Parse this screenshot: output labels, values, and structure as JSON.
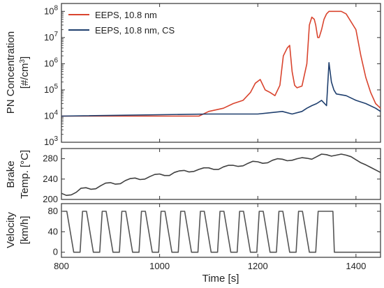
{
  "colors": {
    "eeps": "#d9442e",
    "eeps_cs": "#1f3f6e",
    "brake": "#404040",
    "velocity": "#555555",
    "axis": "#333333"
  },
  "xaxis": {
    "label": "Time [s]",
    "range": [
      800,
      1450
    ],
    "ticks": [
      800,
      1000,
      1200,
      1400
    ]
  },
  "chart_data": [
    {
      "type": "line",
      "ylabel": "PN Concentration [#/cm3]",
      "yscale": "log",
      "ylim": [
        1000,
        200000000
      ],
      "yticks": [
        {
          "value": 1000,
          "base": "10",
          "exp": "3"
        },
        {
          "value": 10000,
          "base": "10",
          "exp": "4"
        },
        {
          "value": 100000,
          "base": "10",
          "exp": "5"
        },
        {
          "value": 1000000,
          "base": "10",
          "exp": "6"
        },
        {
          "value": 10000000,
          "base": "10",
          "exp": "7"
        },
        {
          "value": 100000000,
          "base": "10",
          "exp": "8"
        }
      ],
      "legend": "top-left",
      "series": [
        {
          "name": "EEPS, 10.8 nm",
          "color": "#d9442e",
          "x": [
            800,
            1080,
            1100,
            1130,
            1150,
            1170,
            1185,
            1195,
            1205,
            1215,
            1225,
            1235,
            1245,
            1252,
            1260,
            1265,
            1270,
            1275,
            1280,
            1290,
            1300,
            1305,
            1310,
            1315,
            1318,
            1322,
            1325,
            1330,
            1335,
            1340,
            1345,
            1350,
            1355,
            1360,
            1370,
            1380,
            1400,
            1410,
            1420,
            1430,
            1440,
            1450
          ],
          "y": [
            10000,
            10000,
            15000,
            20000,
            30000,
            40000,
            80000,
            180000,
            250000,
            100000,
            80000,
            60000,
            150000,
            2000000,
            4000000,
            5000000,
            500000,
            150000,
            120000,
            140000,
            1000000,
            30000000,
            60000000,
            50000000,
            30000000,
            10000000,
            10000000,
            20000000,
            50000000,
            80000000,
            100000000,
            100000000,
            100000000,
            100000000,
            100000000,
            80000000,
            20000000,
            2000000,
            300000,
            80000,
            30000,
            20000
          ]
        },
        {
          "name": "EEPS, 10.8 nm, CS",
          "color": "#1f3f6e",
          "x": [
            800,
            1100,
            1200,
            1250,
            1270,
            1290,
            1300,
            1310,
            1320,
            1330,
            1340,
            1345,
            1350,
            1355,
            1360,
            1380,
            1400,
            1420,
            1440,
            1450
          ],
          "y": [
            10000,
            12000,
            12000,
            15000,
            12000,
            15000,
            20000,
            25000,
            30000,
            40000,
            25000,
            1100000,
            200000,
            100000,
            70000,
            60000,
            40000,
            30000,
            20000,
            15000
          ]
        }
      ]
    },
    {
      "type": "line",
      "ylabel": "Brake Temp. [°C]",
      "ylim": [
        200,
        300
      ],
      "yticks": [
        200,
        240,
        280
      ],
      "series": [
        {
          "name": "",
          "color": "#404040",
          "x": [
            800,
            810,
            820,
            830,
            840,
            850,
            860,
            870,
            880,
            890,
            900,
            910,
            920,
            930,
            940,
            950,
            960,
            970,
            980,
            990,
            1000,
            1010,
            1020,
            1030,
            1040,
            1050,
            1060,
            1070,
            1080,
            1090,
            1100,
            1110,
            1120,
            1130,
            1140,
            1150,
            1160,
            1170,
            1180,
            1190,
            1200,
            1210,
            1220,
            1230,
            1240,
            1250,
            1260,
            1270,
            1280,
            1290,
            1300,
            1310,
            1320,
            1330,
            1340,
            1350,
            1360,
            1370,
            1380,
            1390,
            1400,
            1410,
            1420,
            1430,
            1440,
            1450
          ],
          "y": [
            212,
            208,
            209,
            214,
            222,
            223,
            220,
            221,
            227,
            232,
            233,
            230,
            231,
            237,
            241,
            242,
            239,
            240,
            245,
            249,
            250,
            247,
            247,
            253,
            256,
            257,
            254,
            255,
            259,
            262,
            262,
            259,
            259,
            264,
            267,
            267,
            265,
            266,
            271,
            275,
            274,
            271,
            272,
            277,
            280,
            279,
            276,
            277,
            280,
            282,
            281,
            279,
            284,
            289,
            288,
            285,
            287,
            289,
            287,
            284,
            278,
            272,
            268,
            263,
            258,
            253
          ]
        }
      ]
    },
    {
      "type": "line",
      "ylabel": "Velocity [km/h]",
      "ylim": [
        -10,
        95
      ],
      "yticks": [
        0,
        40,
        80
      ],
      "series": [
        {
          "name": "",
          "color": "#555555",
          "x": [
            803,
            811,
            825,
            838,
            843,
            851,
            865,
            878,
            883,
            891,
            905,
            918,
            923,
            931,
            945,
            958,
            963,
            971,
            985,
            998,
            1003,
            1011,
            1025,
            1038,
            1043,
            1051,
            1065,
            1078,
            1083,
            1091,
            1105,
            1118,
            1123,
            1131,
            1145,
            1158,
            1163,
            1171,
            1185,
            1198,
            1203,
            1211,
            1225,
            1238,
            1243,
            1251,
            1265,
            1278,
            1283,
            1291,
            1305,
            1318,
            1323,
            1331,
            1345,
            1353,
            1356,
            1450
          ],
          "y": [
            80,
            80,
            0,
            0,
            80,
            80,
            0,
            0,
            80,
            80,
            0,
            0,
            80,
            80,
            0,
            0,
            80,
            80,
            0,
            0,
            80,
            80,
            0,
            0,
            80,
            80,
            0,
            0,
            80,
            80,
            0,
            0,
            80,
            80,
            0,
            0,
            80,
            80,
            0,
            0,
            80,
            80,
            0,
            0,
            80,
            80,
            0,
            0,
            80,
            80,
            0,
            0,
            80,
            80,
            80,
            80,
            0,
            0
          ]
        }
      ]
    }
  ]
}
